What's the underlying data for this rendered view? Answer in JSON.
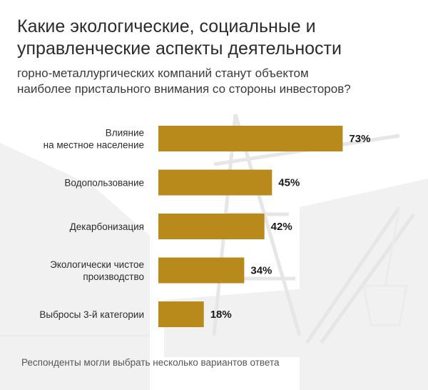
{
  "header": {
    "title_line1": "Какие экологические, социальные и",
    "title_line2": "управленческие аспекты деятельности",
    "subtitle_line1": "горно-металлургических компаний станут объектом",
    "subtitle_line2": "наиболее пристального внимания со стороны инвесторов?"
  },
  "footnote": "Респонденты могли выбрать несколько вариантов ответа",
  "colors": {
    "bar": "#b88a1b",
    "label": "#2b2b2b",
    "value": "#1a1a1a",
    "background_art": "#eeeeee"
  },
  "chart_data": {
    "type": "bar",
    "orientation": "horizontal",
    "categories": [
      [
        "Влияние",
        "на местное население"
      ],
      [
        "Водопользование"
      ],
      [
        "Декарбонизация"
      ],
      [
        "Экологически чистое",
        "производство"
      ],
      [
        "Выбросы 3-й категории"
      ]
    ],
    "values": [
      73,
      45,
      42,
      34,
      18
    ],
    "value_labels": [
      "73%",
      "45%",
      "42%",
      "34%",
      "18%"
    ],
    "xlim": [
      0,
      100
    ],
    "grid": false,
    "legend": false
  }
}
